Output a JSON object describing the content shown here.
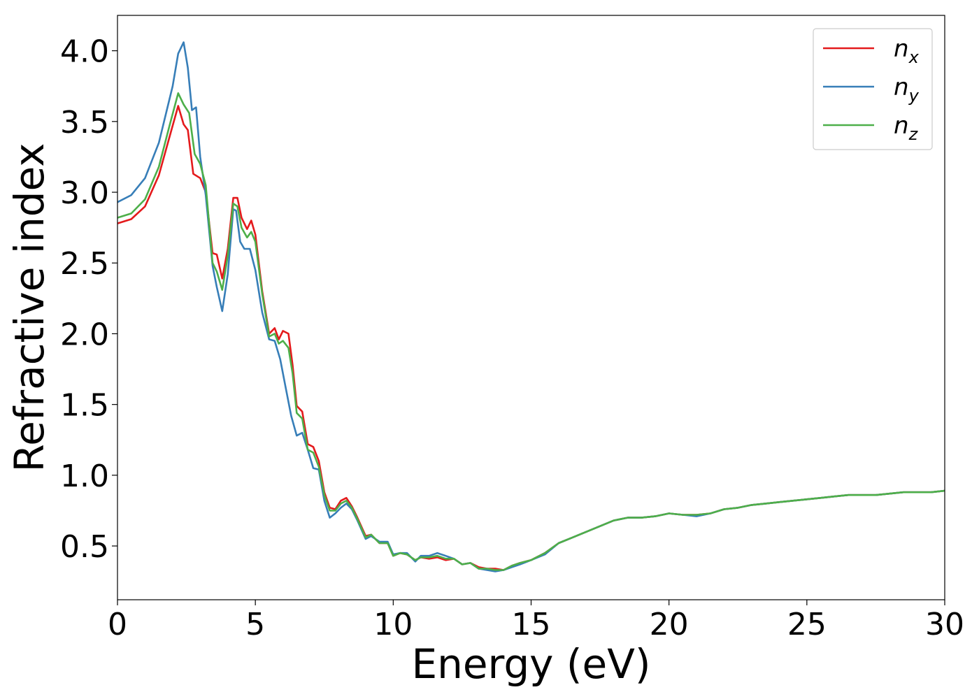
{
  "chart_data": {
    "type": "line",
    "title": "",
    "xlabel": "Energy (eV)",
    "ylabel": "Refractive index",
    "xlim": [
      0,
      30
    ],
    "ylim": [
      0.12,
      4.25
    ],
    "xticks": [
      0,
      5,
      10,
      15,
      20,
      25,
      30
    ],
    "xtick_labels": [
      "0",
      "5",
      "10",
      "15",
      "20",
      "25",
      "30"
    ],
    "yticks": [
      0.5,
      1.0,
      1.5,
      2.0,
      2.5,
      3.0,
      3.5,
      4.0
    ],
    "ytick_labels": [
      "0.5",
      "1.0",
      "1.5",
      "2.0",
      "2.5",
      "3.0",
      "3.5",
      "4.0"
    ],
    "grid": false,
    "legend_position": "top-right",
    "series": [
      {
        "name": "n_x",
        "label_base": "n",
        "label_sub": "x",
        "color": "#e41a1c",
        "x": [
          0,
          0.5,
          1.0,
          1.5,
          1.9,
          2.2,
          2.4,
          2.55,
          2.75,
          3.0,
          3.2,
          3.45,
          3.6,
          3.8,
          4.0,
          4.2,
          4.35,
          4.5,
          4.7,
          4.85,
          5.0,
          5.25,
          5.5,
          5.7,
          5.85,
          6.0,
          6.2,
          6.35,
          6.5,
          6.7,
          6.9,
          7.1,
          7.3,
          7.5,
          7.7,
          7.9,
          8.1,
          8.3,
          8.5,
          8.7,
          9.0,
          9.2,
          9.5,
          9.8,
          10.0,
          10.25,
          10.5,
          10.8,
          11.0,
          11.3,
          11.6,
          11.9,
          12.2,
          12.5,
          12.8,
          13.1,
          13.4,
          13.7,
          14.0,
          14.3,
          14.6,
          15.0,
          15.5,
          16.0,
          16.5,
          17.0,
          17.5,
          18.0,
          18.5,
          19.0,
          19.5,
          20.0,
          20.5,
          21.0,
          21.5,
          22.0,
          22.5,
          23.0,
          23.5,
          24.0,
          24.5,
          25.0,
          25.5,
          26.0,
          26.5,
          27.0,
          27.5,
          28.0,
          28.5,
          29.0,
          29.5,
          30.0
        ],
        "y": [
          2.78,
          2.81,
          2.9,
          3.12,
          3.4,
          3.61,
          3.48,
          3.44,
          3.13,
          3.1,
          3.0,
          2.57,
          2.56,
          2.39,
          2.6,
          2.96,
          2.96,
          2.82,
          2.74,
          2.8,
          2.7,
          2.3,
          2.0,
          2.04,
          1.96,
          2.02,
          2.0,
          1.78,
          1.49,
          1.45,
          1.22,
          1.2,
          1.1,
          0.88,
          0.77,
          0.76,
          0.82,
          0.84,
          0.78,
          0.7,
          0.57,
          0.58,
          0.52,
          0.52,
          0.43,
          0.45,
          0.44,
          0.4,
          0.42,
          0.41,
          0.42,
          0.4,
          0.41,
          0.37,
          0.38,
          0.35,
          0.34,
          0.34,
          0.33,
          0.36,
          0.38,
          0.4,
          0.45,
          0.52,
          0.56,
          0.6,
          0.64,
          0.68,
          0.7,
          0.7,
          0.71,
          0.73,
          0.72,
          0.72,
          0.73,
          0.76,
          0.77,
          0.79,
          0.8,
          0.81,
          0.82,
          0.83,
          0.84,
          0.85,
          0.86,
          0.86,
          0.86,
          0.87,
          0.88,
          0.88,
          0.88,
          0.89
        ]
      },
      {
        "name": "n_y",
        "label_base": "n",
        "label_sub": "y",
        "color": "#377eb8",
        "x": [
          0,
          0.5,
          1.0,
          1.5,
          2.0,
          2.2,
          2.4,
          2.55,
          2.7,
          2.85,
          3.0,
          3.2,
          3.45,
          3.6,
          3.8,
          4.0,
          4.2,
          4.3,
          4.45,
          4.6,
          4.8,
          5.0,
          5.25,
          5.5,
          5.7,
          5.9,
          6.1,
          6.3,
          6.5,
          6.7,
          6.9,
          7.1,
          7.3,
          7.5,
          7.7,
          7.9,
          8.1,
          8.3,
          8.5,
          8.7,
          9.0,
          9.2,
          9.5,
          9.8,
          10.0,
          10.25,
          10.5,
          10.8,
          11.0,
          11.3,
          11.6,
          11.9,
          12.2,
          12.5,
          12.8,
          13.1,
          13.4,
          13.7,
          14.0,
          14.3,
          14.6,
          15.0,
          15.5,
          16.0,
          16.5,
          17.0,
          17.5,
          18.0,
          18.5,
          19.0,
          19.5,
          20.0,
          20.5,
          21.0,
          21.5,
          22.0,
          22.5,
          23.0,
          23.5,
          24.0,
          24.5,
          25.0,
          25.5,
          26.0,
          26.5,
          27.0,
          27.5,
          28.0,
          28.5,
          29.0,
          29.5,
          30.0
        ],
        "y": [
          2.93,
          2.98,
          3.1,
          3.35,
          3.75,
          3.98,
          4.06,
          3.88,
          3.58,
          3.6,
          3.25,
          2.98,
          2.48,
          2.33,
          2.16,
          2.42,
          2.88,
          2.87,
          2.65,
          2.6,
          2.6,
          2.45,
          2.15,
          1.96,
          1.95,
          1.82,
          1.62,
          1.42,
          1.28,
          1.3,
          1.18,
          1.05,
          1.04,
          0.82,
          0.7,
          0.73,
          0.77,
          0.8,
          0.76,
          0.68,
          0.55,
          0.57,
          0.53,
          0.53,
          0.44,
          0.45,
          0.45,
          0.39,
          0.43,
          0.43,
          0.45,
          0.43,
          0.41,
          0.37,
          0.38,
          0.34,
          0.33,
          0.32,
          0.33,
          0.35,
          0.37,
          0.4,
          0.44,
          0.52,
          0.56,
          0.6,
          0.64,
          0.68,
          0.7,
          0.7,
          0.71,
          0.73,
          0.72,
          0.71,
          0.73,
          0.76,
          0.77,
          0.79,
          0.8,
          0.81,
          0.82,
          0.83,
          0.84,
          0.85,
          0.86,
          0.86,
          0.86,
          0.87,
          0.88,
          0.88,
          0.88,
          0.89
        ]
      },
      {
        "name": "n_z",
        "label_base": "n",
        "label_sub": "z",
        "color": "#4daf4a",
        "x": [
          0,
          0.5,
          1.0,
          1.5,
          1.9,
          2.2,
          2.4,
          2.6,
          2.8,
          3.0,
          3.2,
          3.45,
          3.6,
          3.8,
          4.0,
          4.2,
          4.35,
          4.5,
          4.7,
          4.85,
          5.0,
          5.25,
          5.5,
          5.7,
          5.85,
          6.0,
          6.2,
          6.35,
          6.5,
          6.7,
          6.9,
          7.1,
          7.3,
          7.5,
          7.7,
          7.9,
          8.1,
          8.3,
          8.5,
          8.7,
          9.0,
          9.2,
          9.5,
          9.8,
          10.0,
          10.25,
          10.5,
          10.8,
          11.0,
          11.3,
          11.6,
          11.9,
          12.2,
          12.5,
          12.8,
          13.1,
          13.4,
          13.7,
          14.0,
          14.3,
          14.6,
          15.0,
          15.5,
          16.0,
          16.5,
          17.0,
          17.5,
          18.0,
          18.5,
          19.0,
          19.5,
          20.0,
          20.5,
          21.0,
          21.5,
          22.0,
          22.5,
          23.0,
          23.5,
          24.0,
          24.5,
          25.0,
          25.5,
          26.0,
          26.5,
          27.0,
          27.5,
          28.0,
          28.5,
          29.0,
          29.5,
          30.0
        ],
        "y": [
          2.82,
          2.85,
          2.95,
          3.18,
          3.48,
          3.7,
          3.62,
          3.56,
          3.27,
          3.2,
          3.05,
          2.5,
          2.44,
          2.31,
          2.55,
          2.92,
          2.9,
          2.75,
          2.68,
          2.72,
          2.65,
          2.28,
          1.98,
          2.0,
          1.93,
          1.95,
          1.9,
          1.72,
          1.44,
          1.4,
          1.18,
          1.16,
          1.06,
          0.86,
          0.75,
          0.75,
          0.8,
          0.82,
          0.77,
          0.69,
          0.56,
          0.58,
          0.52,
          0.52,
          0.43,
          0.45,
          0.44,
          0.4,
          0.42,
          0.42,
          0.43,
          0.41,
          0.41,
          0.37,
          0.38,
          0.34,
          0.34,
          0.33,
          0.33,
          0.36,
          0.38,
          0.4,
          0.45,
          0.52,
          0.56,
          0.6,
          0.64,
          0.68,
          0.7,
          0.7,
          0.71,
          0.73,
          0.72,
          0.72,
          0.73,
          0.76,
          0.77,
          0.79,
          0.8,
          0.81,
          0.82,
          0.83,
          0.84,
          0.85,
          0.86,
          0.86,
          0.86,
          0.87,
          0.88,
          0.88,
          0.88,
          0.89
        ]
      }
    ]
  }
}
